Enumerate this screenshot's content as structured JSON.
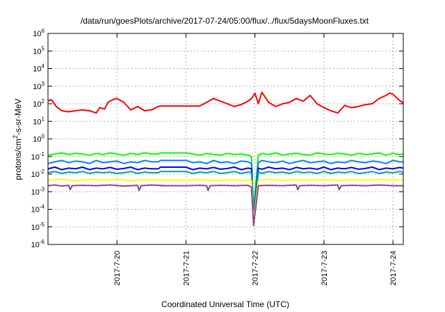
{
  "chart_data": {
    "type": "line",
    "title": "/data/run/goesPlots/archive/2017-07-24/05:00/flux/../flux/5daysMoonFluxes.txt",
    "xlabel": "Coordinated Universal Time (UTC)",
    "ylabel_parts": [
      "protons/cm",
      "2",
      "-s-sr-MeV"
    ],
    "y_scale": "log",
    "ylim": [
      1e-06,
      1000000.0
    ],
    "xlim": [
      0.0,
      5.15
    ],
    "x_unit_note": "x values are days after 2017-07-19 00:00 UTC",
    "grid": true,
    "legend": "none",
    "y_ticks": [
      {
        "value": 1e-06,
        "base": "10",
        "exp": "-6"
      },
      {
        "value": 1e-05,
        "base": "10",
        "exp": "-5"
      },
      {
        "value": 0.0001,
        "base": "10",
        "exp": "-4"
      },
      {
        "value": 0.001,
        "base": "10",
        "exp": "-3"
      },
      {
        "value": 0.01,
        "base": "10",
        "exp": "-2"
      },
      {
        "value": 0.1,
        "base": "10",
        "exp": "-1"
      },
      {
        "value": 1.0,
        "base": "10",
        "exp": "0"
      },
      {
        "value": 10.0,
        "base": "10",
        "exp": "1"
      },
      {
        "value": 100.0,
        "base": "10",
        "exp": "2"
      },
      {
        "value": 1000.0,
        "base": "10",
        "exp": "3"
      },
      {
        "value": 10000.0,
        "base": "10",
        "exp": "4"
      },
      {
        "value": 100000.0,
        "base": "10",
        "exp": "5"
      },
      {
        "value": 1000000.0,
        "base": "10",
        "exp": "6"
      }
    ],
    "x_ticks": [
      {
        "value": 1,
        "label": "2017-7-20"
      },
      {
        "value": 2,
        "label": "2017-7-21"
      },
      {
        "value": 3,
        "label": "2017-7-22"
      },
      {
        "value": 4,
        "label": "2017-7-23"
      },
      {
        "value": 5,
        "label": "2017-7-24"
      }
    ],
    "series": [
      {
        "color": "#ff0000",
        "x": [
          0.0,
          0.05,
          0.12,
          0.2,
          0.3,
          0.4,
          0.5,
          0.6,
          0.7,
          0.75,
          0.82,
          0.87,
          0.95,
          1.0,
          1.1,
          1.2,
          1.3,
          1.4,
          1.5,
          1.6,
          1.63,
          2.0,
          2.2,
          2.3,
          2.4,
          2.5,
          2.6,
          2.7,
          2.8,
          2.9,
          2.95,
          3.0,
          3.05,
          3.1,
          3.2,
          3.3,
          3.4,
          3.5,
          3.6,
          3.7,
          3.8,
          3.9,
          4.0,
          4.1,
          4.2,
          4.3,
          4.4,
          4.5,
          4.6,
          4.7,
          4.8,
          4.9,
          4.95,
          5.0,
          5.1,
          5.15
        ],
        "y": [
          150,
          170,
          70,
          40,
          35,
          40,
          45,
          40,
          30,
          60,
          50,
          120,
          180,
          200,
          120,
          45,
          70,
          40,
          45,
          70,
          75,
          75,
          75,
          120,
          200,
          140,
          100,
          70,
          90,
          140,
          200,
          400,
          100,
          450,
          120,
          70,
          100,
          120,
          200,
          140,
          300,
          100,
          60,
          40,
          30,
          80,
          60,
          70,
          90,
          100,
          200,
          300,
          400,
          350,
          150,
          110
        ]
      },
      {
        "color": "#00ff00",
        "x": [
          0.0,
          0.1,
          0.2,
          0.3,
          0.4,
          0.5,
          0.6,
          0.7,
          0.8,
          0.9,
          1.0,
          1.1,
          1.2,
          1.3,
          1.4,
          1.5,
          1.6,
          1.63,
          2.0,
          2.1,
          2.2,
          2.3,
          2.4,
          2.5,
          2.6,
          2.7,
          2.8,
          2.9,
          2.95,
          2.98,
          3.05,
          3.1,
          3.2,
          3.3,
          3.4,
          3.5,
          3.6,
          3.7,
          3.8,
          3.9,
          4.0,
          4.1,
          4.2,
          4.3,
          4.4,
          4.5,
          4.6,
          4.7,
          4.8,
          4.9,
          5.0,
          5.1,
          5.15
        ],
        "y": [
          0.12,
          0.14,
          0.16,
          0.13,
          0.15,
          0.14,
          0.12,
          0.15,
          0.13,
          0.16,
          0.14,
          0.12,
          0.15,
          0.13,
          0.16,
          0.14,
          0.14,
          0.16,
          0.16,
          0.14,
          0.12,
          0.15,
          0.13,
          0.12,
          0.15,
          0.13,
          0.14,
          0.12,
          0.1,
          0.0001,
          0.12,
          0.15,
          0.13,
          0.16,
          0.12,
          0.14,
          0.15,
          0.13,
          0.12,
          0.16,
          0.14,
          0.13,
          0.15,
          0.14,
          0.12,
          0.15,
          0.13,
          0.14,
          0.16,
          0.12,
          0.15,
          0.13,
          0.14
        ]
      },
      {
        "color": "#0080ff",
        "x": [
          0.0,
          0.1,
          0.2,
          0.3,
          0.4,
          0.5,
          0.6,
          0.7,
          0.8,
          0.9,
          1.0,
          1.1,
          1.2,
          1.3,
          1.4,
          1.5,
          1.6,
          1.63,
          2.0,
          2.1,
          2.2,
          2.3,
          2.4,
          2.5,
          2.6,
          2.7,
          2.8,
          2.9,
          2.95,
          2.98,
          3.05,
          3.1,
          3.2,
          3.3,
          3.4,
          3.5,
          3.6,
          3.7,
          3.8,
          3.9,
          4.0,
          4.1,
          4.2,
          4.3,
          4.4,
          4.5,
          4.6,
          4.7,
          4.8,
          4.9,
          5.0,
          5.1,
          5.15
        ],
        "y": [
          0.04,
          0.05,
          0.06,
          0.045,
          0.055,
          0.05,
          0.04,
          0.06,
          0.045,
          0.05,
          0.055,
          0.04,
          0.05,
          0.045,
          0.06,
          0.05,
          0.05,
          0.06,
          0.06,
          0.045,
          0.05,
          0.04,
          0.06,
          0.045,
          0.05,
          0.04,
          0.055,
          0.05,
          0.04,
          5e-05,
          0.045,
          0.06,
          0.05,
          0.045,
          0.055,
          0.04,
          0.05,
          0.06,
          0.045,
          0.05,
          0.055,
          0.04,
          0.05,
          0.045,
          0.06,
          0.05,
          0.045,
          0.055,
          0.05,
          0.04,
          0.06,
          0.05,
          0.05
        ]
      },
      {
        "color": "#0000ff",
        "x": [
          0.0,
          0.1,
          0.2,
          0.3,
          0.4,
          0.5,
          0.6,
          0.7,
          0.8,
          0.9,
          1.0,
          1.1,
          1.2,
          1.3,
          1.4,
          1.5,
          1.6,
          1.63,
          2.0,
          2.1,
          2.2,
          2.3,
          2.4,
          2.5,
          2.6,
          2.7,
          2.8,
          2.9,
          2.95,
          2.98,
          3.05,
          3.1,
          3.2,
          3.3,
          3.4,
          3.5,
          3.6,
          3.7,
          3.8,
          3.9,
          4.0,
          4.1,
          4.2,
          4.3,
          4.4,
          4.5,
          4.6,
          4.7,
          4.8,
          4.9,
          5.0,
          5.1,
          5.15
        ],
        "y": [
          0.02,
          0.025,
          0.018,
          0.022,
          0.02,
          0.025,
          0.018,
          0.022,
          0.02,
          0.024,
          0.019,
          0.021,
          0.025,
          0.018,
          0.022,
          0.02,
          0.02,
          0.025,
          0.025,
          0.018,
          0.022,
          0.02,
          0.024,
          0.019,
          0.021,
          0.025,
          0.018,
          0.022,
          0.02,
          3e-05,
          0.022,
          0.019,
          0.025,
          0.02,
          0.022,
          0.018,
          0.024,
          0.02,
          0.022,
          0.019,
          0.025,
          0.018,
          0.022,
          0.02,
          0.024,
          0.019,
          0.021,
          0.025,
          0.018,
          0.022,
          0.02,
          0.024,
          0.022
        ]
      },
      {
        "color": "#00a0a0",
        "x": [
          0.0,
          0.1,
          0.2,
          0.3,
          0.4,
          0.5,
          0.6,
          0.7,
          0.8,
          0.9,
          1.0,
          1.1,
          1.2,
          1.3,
          1.4,
          1.5,
          1.6,
          1.63,
          2.0,
          2.1,
          2.2,
          2.3,
          2.4,
          2.5,
          2.6,
          2.7,
          2.8,
          2.9,
          2.95,
          2.98,
          3.05,
          3.1,
          3.2,
          3.3,
          3.4,
          3.5,
          3.6,
          3.7,
          3.8,
          3.9,
          4.0,
          4.1,
          4.2,
          4.3,
          4.4,
          4.5,
          4.6,
          4.7,
          4.8,
          4.9,
          5.0,
          5.1,
          5.15
        ],
        "y": [
          0.012,
          0.014,
          0.011,
          0.013,
          0.012,
          0.014,
          0.011,
          0.013,
          0.012,
          0.013,
          0.011,
          0.012,
          0.014,
          0.011,
          0.013,
          0.012,
          0.012,
          0.014,
          0.014,
          0.011,
          0.013,
          0.012,
          0.014,
          0.011,
          0.012,
          0.014,
          0.011,
          0.013,
          0.012,
          2e-05,
          0.013,
          0.011,
          0.014,
          0.012,
          0.013,
          0.011,
          0.014,
          0.012,
          0.013,
          0.011,
          0.014,
          0.011,
          0.013,
          0.012,
          0.014,
          0.011,
          0.012,
          0.014,
          0.011,
          0.013,
          0.012,
          0.014,
          0.013
        ]
      },
      {
        "color": "#ffff00",
        "x": [
          0.0,
          0.2,
          0.4,
          0.6,
          0.8,
          1.0,
          1.2,
          1.4,
          1.6,
          1.63,
          2.0,
          2.2,
          2.4,
          2.6,
          2.8,
          2.95,
          2.98,
          3.05,
          3.2,
          3.4,
          3.6,
          3.8,
          4.0,
          4.2,
          4.4,
          4.6,
          4.8,
          5.0,
          5.15
        ],
        "y": [
          0.0045,
          0.005,
          0.0042,
          0.0048,
          0.0045,
          0.005,
          0.0043,
          0.0047,
          0.0045,
          0.0045,
          0.0045,
          0.0048,
          0.0044,
          0.0046,
          0.0045,
          0.0044,
          2e-05,
          0.0045,
          0.0048,
          0.0044,
          0.0046,
          0.0045,
          0.0047,
          0.0044,
          0.0046,
          0.0045,
          0.0048,
          0.0045,
          0.0046
        ]
      },
      {
        "color": "#904090",
        "x": [
          0.0,
          0.1,
          0.2,
          0.3,
          0.32,
          0.35,
          0.5,
          0.7,
          0.9,
          1.1,
          1.3,
          1.32,
          1.35,
          1.5,
          1.7,
          1.63,
          2.0,
          2.2,
          2.3,
          2.32,
          2.35,
          2.5,
          2.7,
          2.9,
          2.95,
          2.98,
          3.05,
          3.2,
          3.4,
          3.6,
          3.62,
          3.65,
          3.8,
          4.0,
          4.2,
          4.22,
          4.25,
          4.4,
          4.6,
          4.8,
          5.0,
          5.15
        ],
        "y": [
          0.0022,
          0.0024,
          0.0021,
          0.0023,
          0.0013,
          0.0022,
          0.0023,
          0.0022,
          0.0024,
          0.0021,
          0.0023,
          0.0012,
          0.0022,
          0.0024,
          0.0022,
          0.0022,
          0.0022,
          0.0023,
          0.0022,
          0.0012,
          0.0022,
          0.0023,
          0.0022,
          0.0023,
          0.0018,
          1.2e-05,
          0.0022,
          0.0023,
          0.0022,
          0.0024,
          0.0013,
          0.0022,
          0.0023,
          0.0022,
          0.0024,
          0.0013,
          0.0022,
          0.0023,
          0.0022,
          0.0024,
          0.0022,
          0.0022
        ]
      }
    ]
  }
}
